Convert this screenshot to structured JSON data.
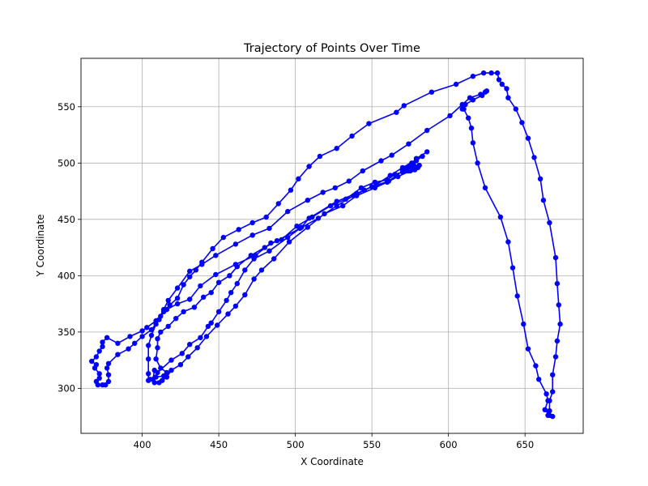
{
  "chart_data": {
    "type": "line",
    "title": "Trajectory of Points Over Time",
    "xlabel": "X Coordinate",
    "ylabel": "Y Coordinate",
    "xlim": [
      360,
      688
    ],
    "ylim": [
      260,
      593
    ],
    "xticks": [
      400,
      450,
      500,
      550,
      600,
      650
    ],
    "yticks": [
      300,
      350,
      400,
      450,
      500,
      550
    ],
    "grid": true,
    "color": "#0000ff",
    "marker": "circle",
    "series": [
      {
        "points": [
          [
            586,
            510
          ],
          [
            579,
            504
          ],
          [
            576,
            500
          ],
          [
            575,
            498
          ],
          [
            578,
            497
          ],
          [
            580,
            496
          ],
          [
            578,
            494
          ],
          [
            574,
            493
          ],
          [
            572,
            495
          ],
          [
            574,
            497
          ],
          [
            577,
            499
          ],
          [
            579,
            502
          ],
          [
            583,
            506
          ],
          [
            570,
            496
          ],
          [
            562,
            489
          ],
          [
            553,
            481
          ],
          [
            545,
            476
          ],
          [
            540,
            473
          ],
          [
            527,
            466
          ],
          [
            509,
            451
          ],
          [
            504,
            443
          ],
          [
            495,
            434
          ],
          [
            483,
            422
          ],
          [
            473,
            415
          ],
          [
            467,
            405
          ],
          [
            462,
            393
          ],
          [
            458,
            385
          ],
          [
            455,
            378
          ],
          [
            450,
            368
          ],
          [
            445,
            358
          ],
          [
            443,
            355
          ],
          [
            438,
            345
          ],
          [
            431,
            339
          ],
          [
            426,
            331
          ],
          [
            419,
            325
          ],
          [
            410,
            314
          ],
          [
            408,
            316
          ],
          [
            407,
            308
          ],
          [
            404,
            307
          ],
          [
            404,
            313
          ],
          [
            404,
            326
          ],
          [
            404,
            338
          ],
          [
            406,
            347
          ],
          [
            409,
            357
          ],
          [
            414,
            370
          ],
          [
            417,
            378
          ],
          [
            423,
            389
          ],
          [
            431,
            404
          ],
          [
            439,
            410
          ],
          [
            448,
            418
          ],
          [
            461,
            428
          ],
          [
            472,
            436
          ],
          [
            483,
            442
          ],
          [
            495,
            457
          ],
          [
            508,
            467
          ],
          [
            518,
            474
          ],
          [
            526,
            478
          ],
          [
            535,
            484
          ],
          [
            544,
            493
          ],
          [
            556,
            502
          ],
          [
            563,
            507
          ],
          [
            574,
            517
          ],
          [
            586,
            529
          ],
          [
            601,
            542
          ],
          [
            609,
            552
          ],
          [
            614,
            558
          ],
          [
            621,
            561
          ],
          [
            625,
            564
          ],
          [
            624,
            563
          ],
          [
            622,
            560
          ],
          [
            616,
            556
          ],
          [
            611,
            552
          ],
          [
            609,
            548
          ],
          [
            610,
            548
          ],
          [
            613,
            540
          ],
          [
            615,
            531
          ],
          [
            616,
            518
          ],
          [
            619,
            500
          ],
          [
            624,
            478
          ],
          [
            634,
            452
          ],
          [
            639,
            430
          ],
          [
            642,
            407
          ],
          [
            645,
            382
          ],
          [
            649,
            357
          ],
          [
            652,
            335
          ],
          [
            657,
            320
          ],
          [
            659,
            308
          ],
          [
            664,
            295
          ],
          [
            665,
            289
          ],
          [
            663,
            281
          ],
          [
            666,
            276
          ],
          [
            668,
            275
          ],
          [
            665,
            276
          ],
          [
            666,
            280
          ],
          [
            666,
            289
          ],
          [
            668,
            297
          ],
          [
            668,
            312
          ],
          [
            670,
            328
          ],
          [
            671,
            342
          ],
          [
            673,
            357
          ],
          [
            672,
            374
          ],
          [
            671,
            393
          ],
          [
            670,
            416
          ],
          [
            666,
            447
          ],
          [
            662,
            467
          ],
          [
            660,
            486
          ],
          [
            656,
            505
          ],
          [
            652,
            522
          ],
          [
            648,
            536
          ],
          [
            644,
            548
          ],
          [
            639,
            558
          ],
          [
            638,
            566
          ],
          [
            635,
            570
          ],
          [
            633,
            574
          ],
          [
            632,
            580
          ],
          [
            628,
            580
          ],
          [
            623,
            580
          ],
          [
            616,
            577
          ],
          [
            605,
            570
          ],
          [
            589,
            563
          ],
          [
            571,
            551
          ],
          [
            566,
            545
          ],
          [
            548,
            535
          ],
          [
            537,
            524
          ],
          [
            527,
            513
          ],
          [
            516,
            506
          ],
          [
            509,
            497
          ],
          [
            502,
            486
          ],
          [
            497,
            476
          ],
          [
            489,
            464
          ],
          [
            481,
            452
          ],
          [
            472,
            447
          ],
          [
            463,
            441
          ],
          [
            453,
            434
          ],
          [
            446,
            424
          ],
          [
            439,
            412
          ],
          [
            435,
            405
          ],
          [
            431,
            399
          ],
          [
            427,
            392
          ],
          [
            423,
            380
          ],
          [
            418,
            374
          ],
          [
            414,
            368
          ],
          [
            411,
            361
          ],
          [
            406,
            352
          ],
          [
            400,
            346
          ],
          [
            395,
            340
          ],
          [
            391,
            335
          ],
          [
            384,
            330
          ],
          [
            378,
            322
          ],
          [
            377,
            318
          ],
          [
            378,
            312
          ],
          [
            378,
            306
          ],
          [
            376,
            303
          ],
          [
            374,
            303
          ],
          [
            371,
            303
          ],
          [
            370,
            306
          ],
          [
            372,
            309
          ],
          [
            372,
            313
          ],
          [
            369,
            318
          ],
          [
            370,
            321
          ],
          [
            367,
            324
          ],
          [
            370,
            328
          ],
          [
            372,
            333
          ],
          [
            374,
            337
          ],
          [
            374,
            341
          ],
          [
            377,
            345
          ],
          [
            384,
            340
          ],
          [
            392,
            346
          ],
          [
            400,
            351
          ],
          [
            403,
            354
          ],
          [
            409,
            360
          ],
          [
            412,
            364
          ],
          [
            416,
            370
          ],
          [
            423,
            375
          ],
          [
            431,
            379
          ],
          [
            438,
            391
          ],
          [
            448,
            401
          ],
          [
            461,
            410
          ],
          [
            474,
            418
          ],
          [
            484,
            429
          ],
          [
            491,
            432
          ],
          [
            501,
            444
          ],
          [
            511,
            452
          ],
          [
            523,
            462
          ],
          [
            533,
            468
          ],
          [
            543,
            478
          ],
          [
            552,
            483
          ],
          [
            560,
            485
          ],
          [
            565,
            490
          ],
          [
            570,
            492
          ],
          [
            574,
            494
          ],
          [
            576,
            495
          ],
          [
            577,
            496
          ],
          [
            579,
            496
          ],
          [
            578,
            495
          ],
          [
            576,
            494
          ],
          [
            573,
            493
          ],
          [
            570,
            493
          ],
          [
            566,
            489
          ],
          [
            561,
            484
          ],
          [
            550,
            479
          ],
          [
            538,
            471
          ],
          [
            527,
            462
          ],
          [
            515,
            451
          ],
          [
            503,
            442
          ],
          [
            488,
            431
          ],
          [
            480,
            425
          ],
          [
            471,
            418
          ],
          [
            462,
            408
          ],
          [
            457,
            400
          ],
          [
            450,
            394
          ],
          [
            445,
            385
          ],
          [
            440,
            381
          ],
          [
            434,
            372
          ],
          [
            427,
            368
          ],
          [
            422,
            362
          ],
          [
            417,
            355
          ],
          [
            412,
            350
          ],
          [
            410,
            344
          ],
          [
            410,
            336
          ],
          [
            409,
            326
          ],
          [
            412,
            318
          ],
          [
            416,
            314
          ],
          [
            414,
            311
          ],
          [
            409,
            310
          ],
          [
            405,
            308
          ],
          [
            408,
            305
          ],
          [
            411,
            305
          ],
          [
            413,
            307
          ],
          [
            416,
            310
          ],
          [
            419,
            316
          ],
          [
            425,
            321
          ],
          [
            430,
            328
          ],
          [
            436,
            336
          ],
          [
            442,
            346
          ],
          [
            449,
            356
          ],
          [
            456,
            366
          ],
          [
            461,
            373
          ],
          [
            467,
            383
          ],
          [
            473,
            397
          ],
          [
            478,
            405
          ],
          [
            486,
            415
          ],
          [
            496,
            430
          ],
          [
            508,
            443
          ],
          [
            519,
            455
          ],
          [
            531,
            462
          ],
          [
            540,
            471
          ],
          [
            552,
            478
          ],
          [
            560,
            483
          ],
          [
            567,
            488
          ],
          [
            575,
            493
          ],
          [
            581,
            498
          ]
        ]
      }
    ]
  }
}
